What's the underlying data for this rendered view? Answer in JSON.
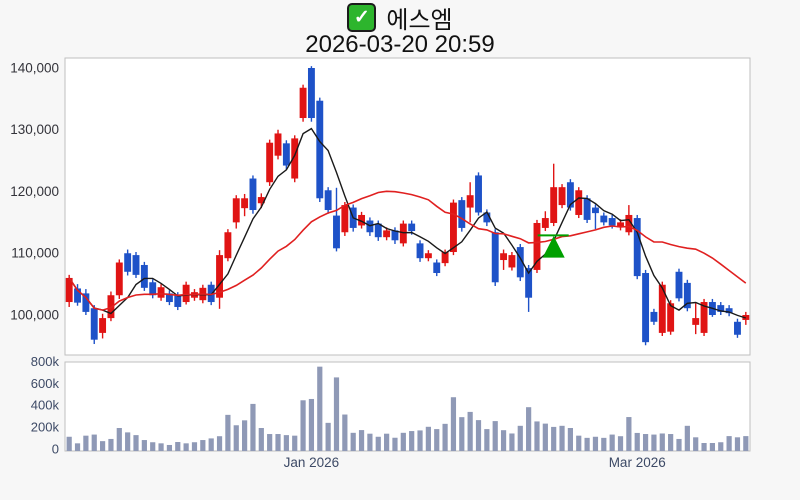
{
  "title": {
    "check_glyph": "✓",
    "text": "에스엠",
    "icon": "checkbox-checked-icon"
  },
  "subtitle": "2026-03-20 20:59",
  "colors": {
    "page_bg": "#f7f7f7",
    "plot_bg": "#ffffff",
    "plot_border": "#bfbfbf",
    "up_candle": "#e01414",
    "down_candle": "#1e52c8",
    "ma_short": "#1a1a1a",
    "ma_long": "#e02020",
    "volume_bar": "#8f99b6",
    "marker_green": "#00a000",
    "price_label_text": "#33333a",
    "axis_label_text": "#3d4a66",
    "check_green": "#2db52d"
  },
  "chart_data": [
    {
      "type": "candlestick",
      "symbol": "에스엠",
      "timestamp": "2026-03-20 20:59",
      "ylim": [
        93522,
        141619
      ],
      "y_ticks": [
        {
          "value": 100000,
          "label": "100,000"
        },
        {
          "value": 110000,
          "label": "110,000"
        },
        {
          "value": 120000,
          "label": "120,000"
        },
        {
          "value": 130000,
          "label": "130,000"
        },
        {
          "value": 140000,
          "label": "140,000"
        }
      ],
      "x_ticks": [
        {
          "label": "Jan 2026",
          "candle_index": 29
        },
        {
          "label": "Mar 2026",
          "candle_index": 68
        }
      ],
      "ma_short_period": 5,
      "ma_long_period": 20,
      "marker": {
        "type": "buy-triangle-up",
        "candle_index": 58,
        "color": "#00a000",
        "apex_price": 112800,
        "base_price": 109300,
        "line_price": 112900
      },
      "candles": [
        [
          102100,
          106500,
          101300,
          106000
        ],
        [
          104300,
          105000,
          101500,
          102000
        ],
        [
          103500,
          104200,
          100000,
          100500
        ],
        [
          101100,
          101600,
          95300,
          96000
        ],
        [
          97100,
          100200,
          96200,
          99500
        ],
        [
          99500,
          103800,
          99000,
          103200
        ],
        [
          103200,
          109000,
          102600,
          108500
        ],
        [
          110000,
          110600,
          106400,
          107000
        ],
        [
          109700,
          110200,
          106000,
          106500
        ],
        [
          108100,
          108600,
          103900,
          104400
        ],
        [
          105300,
          105800,
          102700,
          103200
        ],
        [
          102800,
          105000,
          102300,
          104500
        ],
        [
          103500,
          104000,
          101600,
          102100
        ],
        [
          103200,
          103700,
          100800,
          101300
        ],
        [
          102100,
          105400,
          101700,
          104900
        ],
        [
          102800,
          104200,
          102300,
          103700
        ],
        [
          102400,
          104900,
          101900,
          104400
        ],
        [
          104900,
          105400,
          101600,
          102100
        ],
        [
          102800,
          110500,
          101000,
          109700
        ],
        [
          109200,
          113900,
          108700,
          113400
        ],
        [
          115000,
          119400,
          114000,
          118900
        ],
        [
          117300,
          119600,
          116000,
          118900
        ],
        [
          122100,
          122600,
          116400,
          117000
        ],
        [
          118100,
          119700,
          117300,
          119100
        ],
        [
          121500,
          128400,
          120900,
          127900
        ],
        [
          125800,
          130000,
          125200,
          129400
        ],
        [
          127800,
          128300,
          123600,
          124200
        ],
        [
          122100,
          129100,
          121500,
          128600
        ],
        [
          131900,
          137300,
          131300,
          136800
        ],
        [
          140000,
          140300,
          131300,
          131900
        ],
        [
          134700,
          135200,
          118300,
          118900
        ],
        [
          120200,
          120700,
          116400,
          117000
        ],
        [
          116100,
          120600,
          110300,
          110800
        ],
        [
          113400,
          118300,
          112800,
          117800
        ],
        [
          117400,
          117900,
          113500,
          114100
        ],
        [
          114500,
          116700,
          114000,
          116200
        ],
        [
          115300,
          115800,
          112800,
          113400
        ],
        [
          114800,
          115300,
          112000,
          112600
        ],
        [
          112600,
          114200,
          112100,
          113700
        ],
        [
          113700,
          114200,
          111500,
          112100
        ],
        [
          111600,
          115300,
          111100,
          114800
        ],
        [
          114800,
          115300,
          113000,
          113600
        ],
        [
          111600,
          112100,
          108600,
          109200
        ],
        [
          109200,
          110500,
          108700,
          110000
        ],
        [
          108500,
          109000,
          106300,
          106800
        ],
        [
          108400,
          110600,
          107900,
          110200
        ],
        [
          110200,
          118700,
          109700,
          118200
        ],
        [
          118600,
          119100,
          113500,
          114100
        ],
        [
          117400,
          121500,
          115000,
          119400
        ],
        [
          122600,
          123100,
          116100,
          116600
        ],
        [
          116600,
          117100,
          114400,
          115000
        ],
        [
          113400,
          113900,
          104700,
          105300
        ],
        [
          108900,
          110600,
          107300,
          110000
        ],
        [
          107700,
          110200,
          107200,
          109700
        ],
        [
          111000,
          111500,
          105500,
          106100
        ],
        [
          107600,
          108100,
          100500,
          102800
        ],
        [
          107300,
          115400,
          106800,
          114900
        ],
        [
          114100,
          116800,
          113600,
          115700
        ],
        [
          114900,
          124500,
          114400,
          120700
        ],
        [
          117800,
          121200,
          117300,
          120700
        ],
        [
          121500,
          122000,
          116900,
          117400
        ],
        [
          116200,
          120700,
          115700,
          120200
        ],
        [
          118900,
          119400,
          114900,
          115400
        ],
        [
          117400,
          117900,
          113900,
          116500
        ],
        [
          116100,
          116600,
          114500,
          115000
        ],
        [
          115700,
          116200,
          114000,
          114500
        ],
        [
          114200,
          115500,
          113700,
          115000
        ],
        [
          113400,
          117800,
          112900,
          116200
        ],
        [
          115700,
          116200,
          105800,
          106300
        ],
        [
          106800,
          107300,
          95100,
          95600
        ],
        [
          100500,
          101000,
          98400,
          98900
        ],
        [
          97100,
          105400,
          96600,
          104900
        ],
        [
          97300,
          102400,
          96800,
          101900
        ],
        [
          107000,
          107500,
          102200,
          102700
        ],
        [
          105200,
          105700,
          100600,
          101100
        ],
        [
          98400,
          101900,
          96900,
          99500
        ],
        [
          97100,
          102600,
          96600,
          102100
        ],
        [
          102100,
          102600,
          99700,
          100000
        ],
        [
          101600,
          102100,
          100000,
          100500
        ],
        [
          101100,
          101600,
          99800,
          100300
        ],
        [
          98900,
          99400,
          96300,
          96800
        ],
        [
          99200,
          100500,
          98400,
          100000
        ]
      ]
    },
    {
      "type": "bar",
      "name": "volume",
      "ylim": [
        0,
        812600
      ],
      "y_ticks": [
        {
          "value": 0,
          "label": "0"
        },
        {
          "value": 200000,
          "label": "200k"
        },
        {
          "value": 400000,
          "label": "400k"
        },
        {
          "value": 600000,
          "label": "600k"
        },
        {
          "value": 800000,
          "label": "800k"
        }
      ],
      "values": [
        130000,
        70000,
        140000,
        150000,
        90000,
        110000,
        210000,
        170000,
        145000,
        100000,
        80000,
        70000,
        55000,
        82000,
        70000,
        80000,
        100000,
        115000,
        135000,
        330000,
        235000,
        280000,
        430000,
        210000,
        155000,
        155000,
        145000,
        140000,
        463000,
        475000,
        770000,
        257000,
        672000,
        333000,
        166000,
        191000,
        158000,
        130000,
        158000,
        121000,
        166000,
        182000,
        188000,
        221000,
        200000,
        248000,
        491000,
        309000,
        357000,
        282000,
        200000,
        273000,
        190000,
        160000,
        230000,
        400000,
        270000,
        250000,
        220000,
        230000,
        210000,
        140000,
        120000,
        130000,
        120000,
        150000,
        135000,
        310000,
        165000,
        155000,
        150000,
        160000,
        155000,
        110000,
        230000,
        125000,
        73000,
        73000,
        80000,
        136000,
        125000,
        136000
      ]
    }
  ]
}
